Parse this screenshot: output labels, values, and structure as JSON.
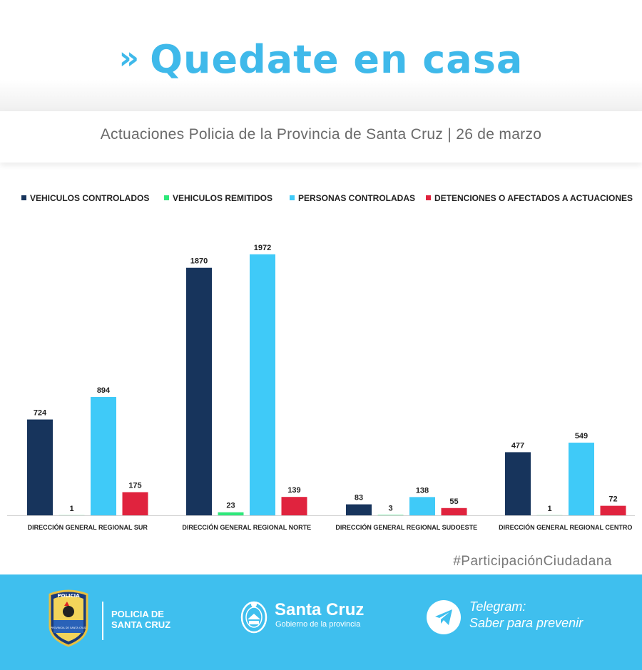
{
  "header": {
    "title": "Quedate en casa",
    "subtitle": "Actuaciones Policia de la Provincia de Santa Cruz | 26 de marzo"
  },
  "colors": {
    "brand_blue": "#3fb9ea",
    "footer_blue": "#3fbfee",
    "series": [
      "#17345c",
      "#2ee87a",
      "#3fcaf8",
      "#e0233e"
    ]
  },
  "chart_data": {
    "type": "bar",
    "categories": [
      "DIRECCIÓN GENERAL REGIONAL SUR",
      "DIRECCIÓN GENERAL REGIONAL NORTE",
      "DIRECCIÓN GENERAL REGIONAL SUDOESTE",
      "DIRECCIÓN GENERAL REGIONAL CENTRO"
    ],
    "series": [
      {
        "name": "VEHICULOS CONTROLADOS",
        "color": "#17345c",
        "values": [
          724,
          1870,
          83,
          477
        ]
      },
      {
        "name": "VEHICULOS REMITIDOS",
        "color": "#2ee87a",
        "values": [
          1,
          23,
          3,
          1
        ]
      },
      {
        "name": "PERSONAS CONTROLADAS",
        "color": "#3fcaf8",
        "values": [
          894,
          1972,
          138,
          549
        ]
      },
      {
        "name": "DETENCIONES O AFECTADOS A ACTUACIONES",
        "color": "#e0233e",
        "values": [
          175,
          139,
          55,
          72
        ]
      }
    ],
    "ylim": [
      0,
      2100
    ],
    "grid": false,
    "legend_position": "top",
    "data_labels": true
  },
  "footer": {
    "hashtag": "#ParticipaciónCiudadana",
    "police_name_line1": "POLICIA DE",
    "police_name_line2": "SANTA CRUZ",
    "badge_text_top": "POLICIA",
    "badge_text_bottom": "PROVINCIA DE SANTA CRUZ",
    "gov_name": "Santa Cruz",
    "gov_sub": "Gobierno de la provincia",
    "telegram_line1": "Telegram:",
    "telegram_line2": "Saber para prevenir",
    "telegram_icon": "telegram-paper-plane-icon"
  }
}
